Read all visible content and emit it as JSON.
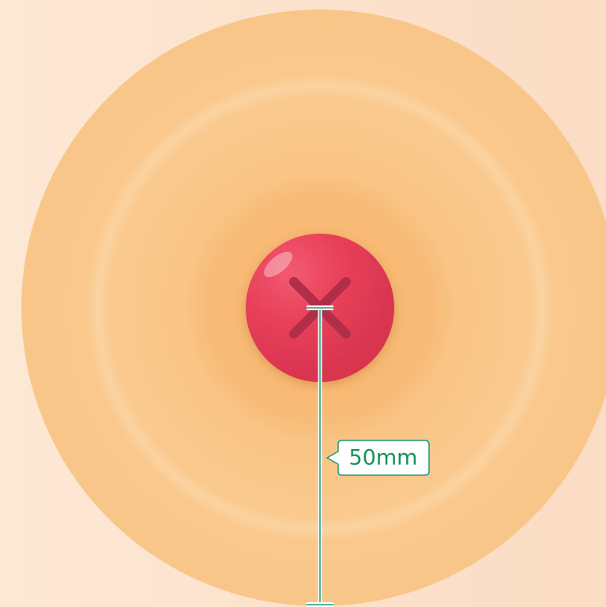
{
  "measurement": {
    "label": "50mm"
  }
}
